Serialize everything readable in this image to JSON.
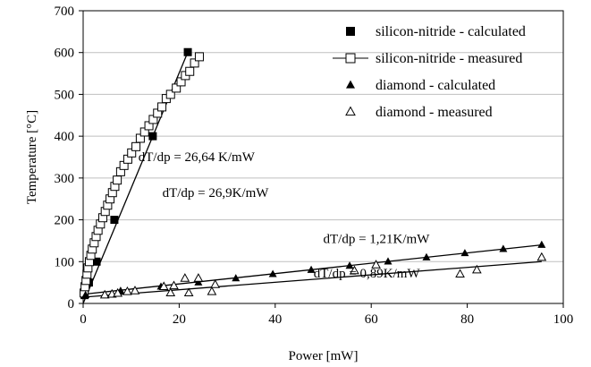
{
  "chart_data": {
    "type": "scatter",
    "xlabel": "Power [mW]",
    "ylabel": "Temperature [°C]",
    "xlim": [
      0,
      100
    ],
    "ylim": [
      0,
      700
    ],
    "x_ticks": [
      "0",
      "20",
      "40",
      "60",
      "80",
      "100"
    ],
    "y_ticks": [
      "0",
      "100",
      "200",
      "300",
      "400",
      "500",
      "600",
      "700"
    ],
    "grid": "horizontal",
    "legend_position": "top-right",
    "series": [
      {
        "name": "silicon-nitride - calculated",
        "marker": "square-filled",
        "line": false,
        "points": [
          [
            0.3,
            20
          ],
          [
            1.2,
            50
          ],
          [
            2.8,
            100
          ],
          [
            6.5,
            200
          ],
          [
            14.5,
            400
          ],
          [
            21.8,
            601
          ]
        ]
      },
      {
        "name": "silicon-nitride - measured",
        "marker": "square-open",
        "line": true,
        "points": [
          [
            0.2,
            25
          ],
          [
            0.4,
            40
          ],
          [
            0.6,
            55
          ],
          [
            0.8,
            70
          ],
          [
            1.0,
            85
          ],
          [
            1.3,
            100
          ],
          [
            1.6,
            115
          ],
          [
            1.9,
            130
          ],
          [
            2.3,
            145
          ],
          [
            2.7,
            160
          ],
          [
            3.1,
            175
          ],
          [
            3.6,
            190
          ],
          [
            4.1,
            205
          ],
          [
            4.6,
            220
          ],
          [
            5.1,
            235
          ],
          [
            5.6,
            250
          ],
          [
            6.1,
            265
          ],
          [
            6.6,
            280
          ],
          [
            7.1,
            295
          ],
          [
            7.8,
            315
          ],
          [
            8.5,
            330
          ],
          [
            9.3,
            345
          ],
          [
            10.1,
            360
          ],
          [
            11.0,
            375
          ],
          [
            11.9,
            395
          ],
          [
            12.8,
            410
          ],
          [
            13.7,
            425
          ],
          [
            14.6,
            440
          ],
          [
            15.5,
            455
          ],
          [
            16.4,
            470
          ],
          [
            17.3,
            490
          ],
          [
            18.2,
            500
          ],
          [
            19.4,
            515
          ],
          [
            20.4,
            530
          ],
          [
            21.3,
            545
          ],
          [
            22.2,
            555
          ],
          [
            23.2,
            575
          ],
          [
            24.2,
            590
          ]
        ]
      },
      {
        "name": "diamond - calculated",
        "marker": "triangle-filled",
        "line": false,
        "points": [
          [
            0.5,
            20
          ],
          [
            7.8,
            30
          ],
          [
            16.2,
            40
          ],
          [
            24.0,
            50
          ],
          [
            31.8,
            60
          ],
          [
            39.5,
            70
          ],
          [
            47.5,
            80
          ],
          [
            55.5,
            90
          ],
          [
            63.5,
            100
          ],
          [
            71.5,
            110
          ],
          [
            79.5,
            120
          ],
          [
            87.5,
            130
          ],
          [
            95.5,
            140
          ]
        ]
      },
      {
        "name": "diamond - measured",
        "marker": "triangle-open",
        "line": false,
        "points": [
          [
            4.5,
            20
          ],
          [
            6.0,
            22
          ],
          [
            7.2,
            24
          ],
          [
            9.2,
            28
          ],
          [
            10.8,
            30
          ],
          [
            16.8,
            40
          ],
          [
            18.2,
            25
          ],
          [
            18.9,
            42
          ],
          [
            21.2,
            60
          ],
          [
            22.0,
            25
          ],
          [
            24.0,
            60
          ],
          [
            26.8,
            28
          ],
          [
            27.5,
            45
          ],
          [
            56.5,
            78
          ],
          [
            61.0,
            92
          ],
          [
            78.5,
            70
          ],
          [
            82.0,
            80
          ],
          [
            95.5,
            110
          ]
        ]
      }
    ],
    "trendlines": [
      {
        "from": [
          0,
          0
        ],
        "to": [
          21.8,
          601
        ]
      },
      {
        "from": [
          0,
          22
        ],
        "to": [
          95.5,
          140
        ]
      },
      {
        "from": [
          0,
          15
        ],
        "to": [
          95.5,
          100
        ]
      }
    ],
    "annotations": [
      {
        "text": "dT/dp = 26,9K/mW",
        "x": 16.5,
        "y": 255
      },
      {
        "text": "dT/dp = 26,64 K/mW",
        "x": 11.5,
        "y": 340
      },
      {
        "text": "dT/dp = 1,21K/mW",
        "x": 50,
        "y": 145
      },
      {
        "text": "dT/dp = 0,89K/mW",
        "x": 48,
        "y": 62
      }
    ]
  }
}
